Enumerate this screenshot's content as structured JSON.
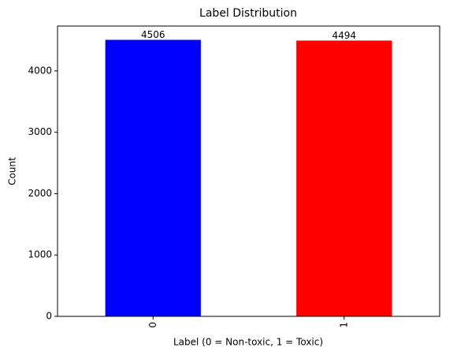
{
  "chart_data": {
    "type": "bar",
    "title": "Label Distribution",
    "x_label": "Label (0 = Non-toxic, 1 = Toxic)",
    "y_label": "Count",
    "categories": [
      "0",
      "1"
    ],
    "values": [
      4506,
      4494
    ],
    "colors": [
      "#0000ff",
      "#ff0000"
    ],
    "ylim": [
      0,
      4731
    ],
    "yticks": [
      0,
      1000,
      2000,
      3000,
      4000
    ],
    "grid": false
  }
}
